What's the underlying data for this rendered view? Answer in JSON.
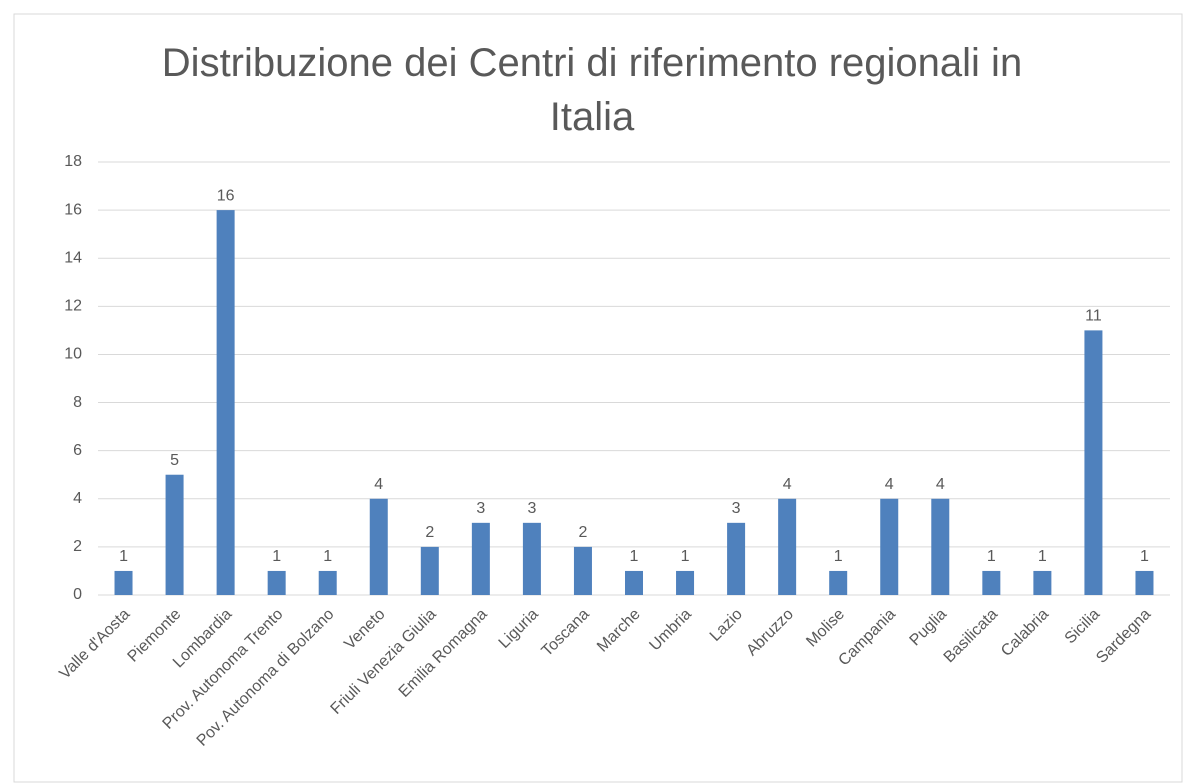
{
  "chart_data": {
    "type": "bar",
    "title": "Distribuzione dei Centri di riferimento regionali in Italia",
    "categories": [
      "Valle d'Aosta",
      "Piemonte",
      "Lombardia",
      "Prov. Autonoma Trento",
      "Pov. Autonoma di Bolzano",
      "Veneto",
      "Friuli Venezia Giulia",
      "Emilia Romagna",
      "Liguria",
      "Toscana",
      "Marche",
      "Umbria",
      "Lazio",
      "Abruzzo",
      "Molise",
      "Campania",
      "Puglia",
      "Basilicata",
      "Calabria",
      "Sicilia",
      "Sardegna"
    ],
    "values": [
      1,
      5,
      16,
      1,
      1,
      4,
      2,
      3,
      3,
      2,
      1,
      1,
      3,
      4,
      1,
      4,
      4,
      1,
      1,
      11,
      1
    ],
    "color": "#4f81bd",
    "ylim": [
      0,
      18
    ],
    "yticks": [
      0,
      2,
      4,
      6,
      8,
      10,
      12,
      14,
      16,
      18
    ],
    "grid": true
  }
}
